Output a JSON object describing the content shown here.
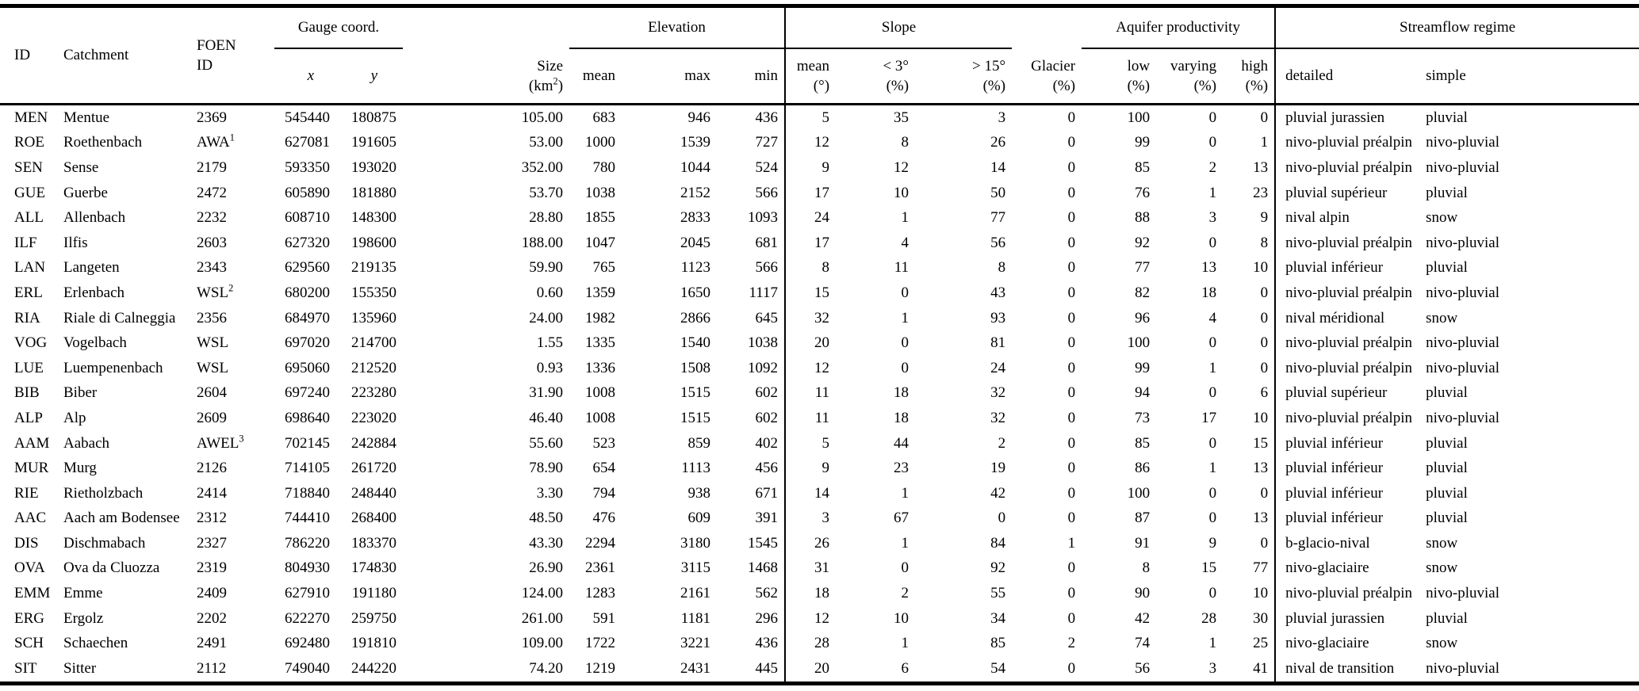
{
  "table": {
    "header": {
      "id": "ID",
      "catchment": "Catchment",
      "foen_line1": "FOEN",
      "foen_line2": "ID",
      "gauge_group": "Gauge coord.",
      "x": "x",
      "y": "y",
      "size_line1": "Size",
      "size_unit_pre": "(km",
      "size_unit_sup": "2",
      "size_unit_post": ")",
      "elevation_group": "Elevation",
      "elev_mean": "mean",
      "elev_max": "max",
      "elev_min": "min",
      "slope_group": "Slope",
      "slope_mean_line1": "mean",
      "slope_mean_line2": "(°)",
      "slope_lt3_line1": "< 3°",
      "slope_lt3_line2": "(%)",
      "slope_gt15_line1": "> 15°",
      "slope_gt15_line2": "(%)",
      "glacier_line1": "Glacier",
      "glacier_line2": "(%)",
      "aquifer_group": "Aquifer productivity",
      "aq_low_line1": "low",
      "aq_low_line2": "(%)",
      "aq_varying_line1": "varying",
      "aq_varying_line2": "(%)",
      "aq_high_line1": "high",
      "aq_high_line2": "(%)",
      "streamflow_group": "Streamflow regime",
      "regime_detailed": "detailed",
      "regime_simple": "simple"
    },
    "rows": [
      {
        "id": "MEN",
        "catchment": "Mentue",
        "foen": "2369",
        "foen_sup": "",
        "x": "545440",
        "y": "180875",
        "size": "105.00",
        "elev_mean": "683",
        "elev_max": "946",
        "elev_min": "436",
        "slope_mean": "5",
        "slope_lt3": "35",
        "slope_gt15": "3",
        "glacier": "0",
        "aq_low": "100",
        "aq_varying": "0",
        "aq_high": "0",
        "regime_detailed": "pluvial jurassien",
        "regime_simple": "pluvial"
      },
      {
        "id": "ROE",
        "catchment": "Roethenbach",
        "foen": "AWA",
        "foen_sup": "1",
        "x": "627081",
        "y": "191605",
        "size": "53.00",
        "elev_mean": "1000",
        "elev_max": "1539",
        "elev_min": "727",
        "slope_mean": "12",
        "slope_lt3": "8",
        "slope_gt15": "26",
        "glacier": "0",
        "aq_low": "99",
        "aq_varying": "0",
        "aq_high": "1",
        "regime_detailed": "nivo-pluvial préalpin",
        "regime_simple": "nivo-pluvial"
      },
      {
        "id": "SEN",
        "catchment": "Sense",
        "foen": "2179",
        "foen_sup": "",
        "x": "593350",
        "y": "193020",
        "size": "352.00",
        "elev_mean": "780",
        "elev_max": "1044",
        "elev_min": "524",
        "slope_mean": "9",
        "slope_lt3": "12",
        "slope_gt15": "14",
        "glacier": "0",
        "aq_low": "85",
        "aq_varying": "2",
        "aq_high": "13",
        "regime_detailed": "nivo-pluvial préalpin",
        "regime_simple": "nivo-pluvial"
      },
      {
        "id": "GUE",
        "catchment": "Guerbe",
        "foen": "2472",
        "foen_sup": "",
        "x": "605890",
        "y": "181880",
        "size": "53.70",
        "elev_mean": "1038",
        "elev_max": "2152",
        "elev_min": "566",
        "slope_mean": "17",
        "slope_lt3": "10",
        "slope_gt15": "50",
        "glacier": "0",
        "aq_low": "76",
        "aq_varying": "1",
        "aq_high": "23",
        "regime_detailed": "pluvial supérieur",
        "regime_simple": "pluvial"
      },
      {
        "id": "ALL",
        "catchment": "Allenbach",
        "foen": "2232",
        "foen_sup": "",
        "x": "608710",
        "y": "148300",
        "size": "28.80",
        "elev_mean": "1855",
        "elev_max": "2833",
        "elev_min": "1093",
        "slope_mean": "24",
        "slope_lt3": "1",
        "slope_gt15": "77",
        "glacier": "0",
        "aq_low": "88",
        "aq_varying": "3",
        "aq_high": "9",
        "regime_detailed": "nival alpin",
        "regime_simple": "snow"
      },
      {
        "id": "ILF",
        "catchment": "Ilfis",
        "foen": "2603",
        "foen_sup": "",
        "x": "627320",
        "y": "198600",
        "size": "188.00",
        "elev_mean": "1047",
        "elev_max": "2045",
        "elev_min": "681",
        "slope_mean": "17",
        "slope_lt3": "4",
        "slope_gt15": "56",
        "glacier": "0",
        "aq_low": "92",
        "aq_varying": "0",
        "aq_high": "8",
        "regime_detailed": "nivo-pluvial préalpin",
        "regime_simple": "nivo-pluvial"
      },
      {
        "id": "LAN",
        "catchment": "Langeten",
        "foen": "2343",
        "foen_sup": "",
        "x": "629560",
        "y": "219135",
        "size": "59.90",
        "elev_mean": "765",
        "elev_max": "1123",
        "elev_min": "566",
        "slope_mean": "8",
        "slope_lt3": "11",
        "slope_gt15": "8",
        "glacier": "0",
        "aq_low": "77",
        "aq_varying": "13",
        "aq_high": "10",
        "regime_detailed": "pluvial inférieur",
        "regime_simple": "pluvial"
      },
      {
        "id": "ERL",
        "catchment": "Erlenbach",
        "foen": "WSL",
        "foen_sup": "2",
        "x": "680200",
        "y": "155350",
        "size": "0.60",
        "elev_mean": "1359",
        "elev_max": "1650",
        "elev_min": "1117",
        "slope_mean": "15",
        "slope_lt3": "0",
        "slope_gt15": "43",
        "glacier": "0",
        "aq_low": "82",
        "aq_varying": "18",
        "aq_high": "0",
        "regime_detailed": "nivo-pluvial préalpin",
        "regime_simple": "nivo-pluvial"
      },
      {
        "id": "RIA",
        "catchment": "Riale di Calneggia",
        "foen": "2356",
        "foen_sup": "",
        "x": "684970",
        "y": "135960",
        "size": "24.00",
        "elev_mean": "1982",
        "elev_max": "2866",
        "elev_min": "645",
        "slope_mean": "32",
        "slope_lt3": "1",
        "slope_gt15": "93",
        "glacier": "0",
        "aq_low": "96",
        "aq_varying": "4",
        "aq_high": "0",
        "regime_detailed": "nival méridional",
        "regime_simple": "snow"
      },
      {
        "id": "VOG",
        "catchment": "Vogelbach",
        "foen": "WSL",
        "foen_sup": "",
        "x": "697020",
        "y": "214700",
        "size": "1.55",
        "elev_mean": "1335",
        "elev_max": "1540",
        "elev_min": "1038",
        "slope_mean": "20",
        "slope_lt3": "0",
        "slope_gt15": "81",
        "glacier": "0",
        "aq_low": "100",
        "aq_varying": "0",
        "aq_high": "0",
        "regime_detailed": "nivo-pluvial préalpin",
        "regime_simple": "nivo-pluvial"
      },
      {
        "id": "LUE",
        "catchment": "Luempenenbach",
        "foen": "WSL",
        "foen_sup": "",
        "x": "695060",
        "y": "212520",
        "size": "0.93",
        "elev_mean": "1336",
        "elev_max": "1508",
        "elev_min": "1092",
        "slope_mean": "12",
        "slope_lt3": "0",
        "slope_gt15": "24",
        "glacier": "0",
        "aq_low": "99",
        "aq_varying": "1",
        "aq_high": "0",
        "regime_detailed": "nivo-pluvial préalpin",
        "regime_simple": "nivo-pluvial"
      },
      {
        "id": "BIB",
        "catchment": "Biber",
        "foen": "2604",
        "foen_sup": "",
        "x": "697240",
        "y": "223280",
        "size": "31.90",
        "elev_mean": "1008",
        "elev_max": "1515",
        "elev_min": "602",
        "slope_mean": "11",
        "slope_lt3": "18",
        "slope_gt15": "32",
        "glacier": "0",
        "aq_low": "94",
        "aq_varying": "0",
        "aq_high": "6",
        "regime_detailed": "pluvial supérieur",
        "regime_simple": "pluvial"
      },
      {
        "id": "ALP",
        "catchment": "Alp",
        "foen": "2609",
        "foen_sup": "",
        "x": "698640",
        "y": "223020",
        "size": "46.40",
        "elev_mean": "1008",
        "elev_max": "1515",
        "elev_min": "602",
        "slope_mean": "11",
        "slope_lt3": "18",
        "slope_gt15": "32",
        "glacier": "0",
        "aq_low": "73",
        "aq_varying": "17",
        "aq_high": "10",
        "regime_detailed": "nivo-pluvial préalpin",
        "regime_simple": "nivo-pluvial"
      },
      {
        "id": "AAM",
        "catchment": "Aabach",
        "foen": "AWEL",
        "foen_sup": "3",
        "x": "702145",
        "y": "242884",
        "size": "55.60",
        "elev_mean": "523",
        "elev_max": "859",
        "elev_min": "402",
        "slope_mean": "5",
        "slope_lt3": "44",
        "slope_gt15": "2",
        "glacier": "0",
        "aq_low": "85",
        "aq_varying": "0",
        "aq_high": "15",
        "regime_detailed": "pluvial inférieur",
        "regime_simple": "pluvial"
      },
      {
        "id": "MUR",
        "catchment": "Murg",
        "foen": "2126",
        "foen_sup": "",
        "x": "714105",
        "y": "261720",
        "size": "78.90",
        "elev_mean": "654",
        "elev_max": "1113",
        "elev_min": "456",
        "slope_mean": "9",
        "slope_lt3": "23",
        "slope_gt15": "19",
        "glacier": "0",
        "aq_low": "86",
        "aq_varying": "1",
        "aq_high": "13",
        "regime_detailed": "pluvial inférieur",
        "regime_simple": "pluvial"
      },
      {
        "id": "RIE",
        "catchment": "Rietholzbach",
        "foen": "2414",
        "foen_sup": "",
        "x": "718840",
        "y": "248440",
        "size": "3.30",
        "elev_mean": "794",
        "elev_max": "938",
        "elev_min": "671",
        "slope_mean": "14",
        "slope_lt3": "1",
        "slope_gt15": "42",
        "glacier": "0",
        "aq_low": "100",
        "aq_varying": "0",
        "aq_high": "0",
        "regime_detailed": "pluvial inférieur",
        "regime_simple": "pluvial"
      },
      {
        "id": "AAC",
        "catchment": "Aach am Bodensee",
        "foen": "2312",
        "foen_sup": "",
        "x": "744410",
        "y": "268400",
        "size": "48.50",
        "elev_mean": "476",
        "elev_max": "609",
        "elev_min": "391",
        "slope_mean": "3",
        "slope_lt3": "67",
        "slope_gt15": "0",
        "glacier": "0",
        "aq_low": "87",
        "aq_varying": "0",
        "aq_high": "13",
        "regime_detailed": "pluvial inférieur",
        "regime_simple": "pluvial"
      },
      {
        "id": "DIS",
        "catchment": "Dischmabach",
        "foen": "2327",
        "foen_sup": "",
        "x": "786220",
        "y": "183370",
        "size": "43.30",
        "elev_mean": "2294",
        "elev_max": "3180",
        "elev_min": "1545",
        "slope_mean": "26",
        "slope_lt3": "1",
        "slope_gt15": "84",
        "glacier": "1",
        "aq_low": "91",
        "aq_varying": "9",
        "aq_high": "0",
        "regime_detailed": "b-glacio-nival",
        "regime_simple": "snow"
      },
      {
        "id": "OVA",
        "catchment": "Ova da Cluozza",
        "foen": "2319",
        "foen_sup": "",
        "x": "804930",
        "y": "174830",
        "size": "26.90",
        "elev_mean": "2361",
        "elev_max": "3115",
        "elev_min": "1468",
        "slope_mean": "31",
        "slope_lt3": "0",
        "slope_gt15": "92",
        "glacier": "0",
        "aq_low": "8",
        "aq_varying": "15",
        "aq_high": "77",
        "regime_detailed": "nivo-glaciaire",
        "regime_simple": "snow"
      },
      {
        "id": "EMM",
        "catchment": "Emme",
        "foen": "2409",
        "foen_sup": "",
        "x": "627910",
        "y": "191180",
        "size": "124.00",
        "elev_mean": "1283",
        "elev_max": "2161",
        "elev_min": "562",
        "slope_mean": "18",
        "slope_lt3": "2",
        "slope_gt15": "55",
        "glacier": "0",
        "aq_low": "90",
        "aq_varying": "0",
        "aq_high": "10",
        "regime_detailed": "nivo-pluvial préalpin",
        "regime_simple": "nivo-pluvial"
      },
      {
        "id": "ERG",
        "catchment": "Ergolz",
        "foen": "2202",
        "foen_sup": "",
        "x": "622270",
        "y": "259750",
        "size": "261.00",
        "elev_mean": "591",
        "elev_max": "1181",
        "elev_min": "296",
        "slope_mean": "12",
        "slope_lt3": "10",
        "slope_gt15": "34",
        "glacier": "0",
        "aq_low": "42",
        "aq_varying": "28",
        "aq_high": "30",
        "regime_detailed": "pluvial jurassien",
        "regime_simple": "pluvial"
      },
      {
        "id": "SCH",
        "catchment": "Schaechen",
        "foen": "2491",
        "foen_sup": "",
        "x": "692480",
        "y": "191810",
        "size": "109.00",
        "elev_mean": "1722",
        "elev_max": "3221",
        "elev_min": "436",
        "slope_mean": "28",
        "slope_lt3": "1",
        "slope_gt15": "85",
        "glacier": "2",
        "aq_low": "74",
        "aq_varying": "1",
        "aq_high": "25",
        "regime_detailed": "nivo-glaciaire",
        "regime_simple": "snow"
      },
      {
        "id": "SIT",
        "catchment": "Sitter",
        "foen": "2112",
        "foen_sup": "",
        "x": "749040",
        "y": "244220",
        "size": "74.20",
        "elev_mean": "1219",
        "elev_max": "2431",
        "elev_min": "445",
        "slope_mean": "20",
        "slope_lt3": "6",
        "slope_gt15": "54",
        "glacier": "0",
        "aq_low": "56",
        "aq_varying": "3",
        "aq_high": "41",
        "regime_detailed": "nival de transition",
        "regime_simple": "nivo-pluvial"
      }
    ]
  }
}
